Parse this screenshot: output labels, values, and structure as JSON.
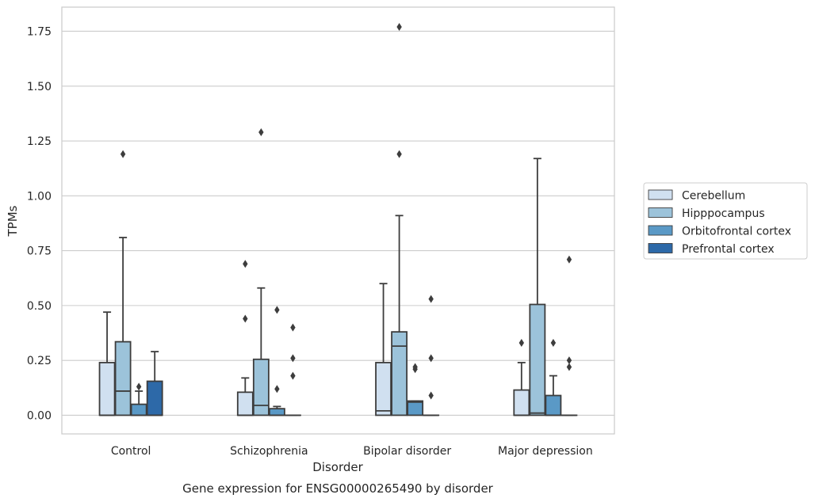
{
  "chart_data": {
    "type": "box",
    "title": "Gene expression for ENSG00000265490 by disorder",
    "xlabel": "Disorder",
    "ylabel": "TPMs",
    "ylim": [
      -0.085,
      1.86
    ],
    "yticks": [
      0.0,
      0.25,
      0.5,
      0.75,
      1.0,
      1.25,
      1.5,
      1.75
    ],
    "ytick_labels": [
      "0.00",
      "0.25",
      "0.50",
      "0.75",
      "1.00",
      "1.25",
      "1.50",
      "1.75"
    ],
    "grid": true,
    "legend_position": "right",
    "categories": [
      "Control",
      "Schizophrenia",
      "Bipolar disorder",
      "Major depression"
    ],
    "series": [
      {
        "name": "Cerebellum",
        "color": "#d0e0f0",
        "boxes": [
          {
            "q1": 0.0,
            "median": 0.0,
            "q3": 0.24,
            "whisker_low": 0.0,
            "whisker_high": 0.47,
            "outliers": []
          },
          {
            "q1": 0.0,
            "median": 0.0,
            "q3": 0.105,
            "whisker_low": 0.0,
            "whisker_high": 0.17,
            "outliers": [
              0.44,
              0.69
            ]
          },
          {
            "q1": 0.0,
            "median": 0.02,
            "q3": 0.24,
            "whisker_low": 0.0,
            "whisker_high": 0.6,
            "outliers": []
          },
          {
            "q1": 0.0,
            "median": 0.0,
            "q3": 0.115,
            "whisker_low": 0.0,
            "whisker_high": 0.24,
            "outliers": [
              0.33
            ]
          }
        ]
      },
      {
        "name": "Hipppocampus",
        "color": "#9cc3da",
        "boxes": [
          {
            "q1": 0.0,
            "median": 0.11,
            "q3": 0.335,
            "whisker_low": 0.0,
            "whisker_high": 0.81,
            "outliers": [
              1.19
            ]
          },
          {
            "q1": 0.0,
            "median": 0.045,
            "q3": 0.255,
            "whisker_low": 0.0,
            "whisker_high": 0.58,
            "outliers": [
              1.29
            ]
          },
          {
            "q1": 0.0,
            "median": 0.315,
            "q3": 0.38,
            "whisker_low": 0.0,
            "whisker_high": 0.91,
            "outliers": [
              1.19,
              1.77
            ]
          },
          {
            "q1": 0.0,
            "median": 0.01,
            "q3": 0.505,
            "whisker_low": 0.0,
            "whisker_high": 1.17,
            "outliers": []
          }
        ]
      },
      {
        "name": "Orbitofrontal cortex",
        "color": "#5a99c6",
        "boxes": [
          {
            "q1": 0.0,
            "median": 0.0,
            "q3": 0.05,
            "whisker_low": 0.0,
            "whisker_high": 0.11,
            "outliers": [
              0.13
            ]
          },
          {
            "q1": 0.0,
            "median": 0.0,
            "q3": 0.03,
            "whisker_low": 0.0,
            "whisker_high": 0.04,
            "outliers": [
              0.12,
              0.48
            ]
          },
          {
            "q1": 0.0,
            "median": 0.06,
            "q3": 0.065,
            "whisker_low": 0.0,
            "whisker_high": 0.065,
            "outliers": [
              0.21,
              0.22
            ]
          },
          {
            "q1": 0.0,
            "median": 0.0,
            "q3": 0.09,
            "whisker_low": 0.0,
            "whisker_high": 0.18,
            "outliers": [
              0.33
            ]
          }
        ]
      },
      {
        "name": "Prefrontal cortex",
        "color": "#2d69a8",
        "boxes": [
          {
            "q1": 0.0,
            "median": 0.0,
            "q3": 0.155,
            "whisker_low": 0.0,
            "whisker_high": 0.29,
            "outliers": []
          },
          {
            "q1": 0.0,
            "median": 0.0,
            "q3": 0.0,
            "whisker_low": 0.0,
            "whisker_high": 0.0,
            "outliers": [
              0.18,
              0.26,
              0.4
            ]
          },
          {
            "q1": 0.0,
            "median": 0.0,
            "q3": 0.0,
            "whisker_low": 0.0,
            "whisker_high": 0.0,
            "outliers": [
              0.09,
              0.26,
              0.53
            ]
          },
          {
            "q1": 0.0,
            "median": 0.0,
            "q3": 0.0,
            "whisker_low": 0.0,
            "whisker_high": 0.0,
            "outliers": [
              0.22,
              0.25,
              0.71
            ]
          }
        ]
      }
    ]
  }
}
